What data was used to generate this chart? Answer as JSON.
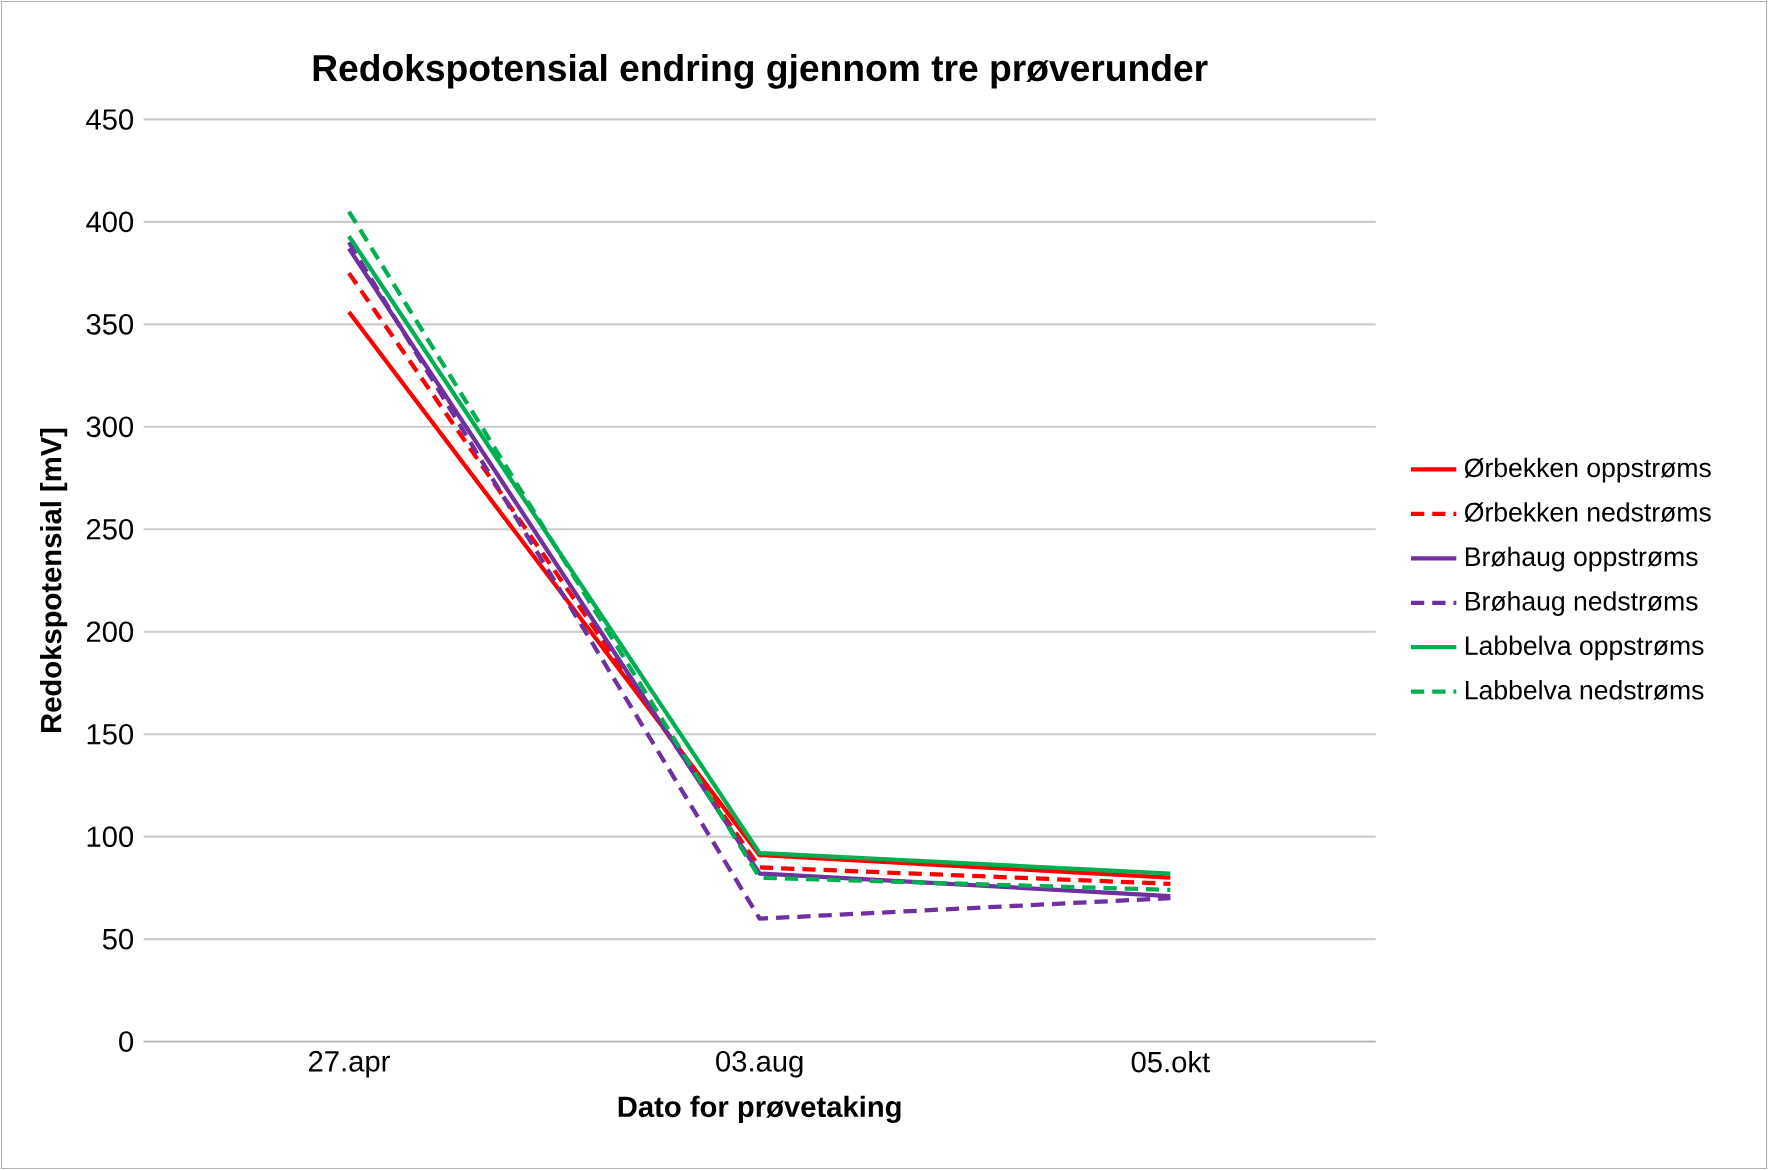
{
  "chart_data": {
    "type": "line",
    "title": "Redokspotensial endring gjennom tre prøverunder",
    "xlabel": "Dato for prøvetaking",
    "ylabel": "Redokspotensial [mV]",
    "categories": [
      "27.apr",
      "03.aug",
      "05.okt"
    ],
    "ylim": [
      0,
      450
    ],
    "yticks": [
      0,
      50,
      100,
      150,
      200,
      250,
      300,
      350,
      400,
      450
    ],
    "grid": "y",
    "legend": "right",
    "marker": "none",
    "series": [
      {
        "name": "Ørbekken oppstrøms",
        "color": "#ff0000",
        "line_style": "solid",
        "values": [
          356,
          91,
          80
        ]
      },
      {
        "name": "Ørbekken nedstrøms",
        "color": "#ff0000",
        "line_style": "dashed",
        "values": [
          375,
          85,
          77
        ]
      },
      {
        "name": "Brøhaug oppstrøms",
        "color": "#7030a0",
        "line_style": "solid",
        "values": [
          387,
          82,
          71
        ]
      },
      {
        "name": "Brøhaug nedstrøms",
        "color": "#7030a0",
        "line_style": "dashed",
        "values": [
          390,
          60,
          70
        ]
      },
      {
        "name": "Labbelva oppstrøms",
        "color": "#00b050",
        "line_style": "solid",
        "values": [
          393,
          92,
          82
        ]
      },
      {
        "name": "Labbelva nedstrøms",
        "color": "#00b050",
        "line_style": "dashed",
        "values": [
          405,
          80,
          74
        ]
      }
    ]
  }
}
